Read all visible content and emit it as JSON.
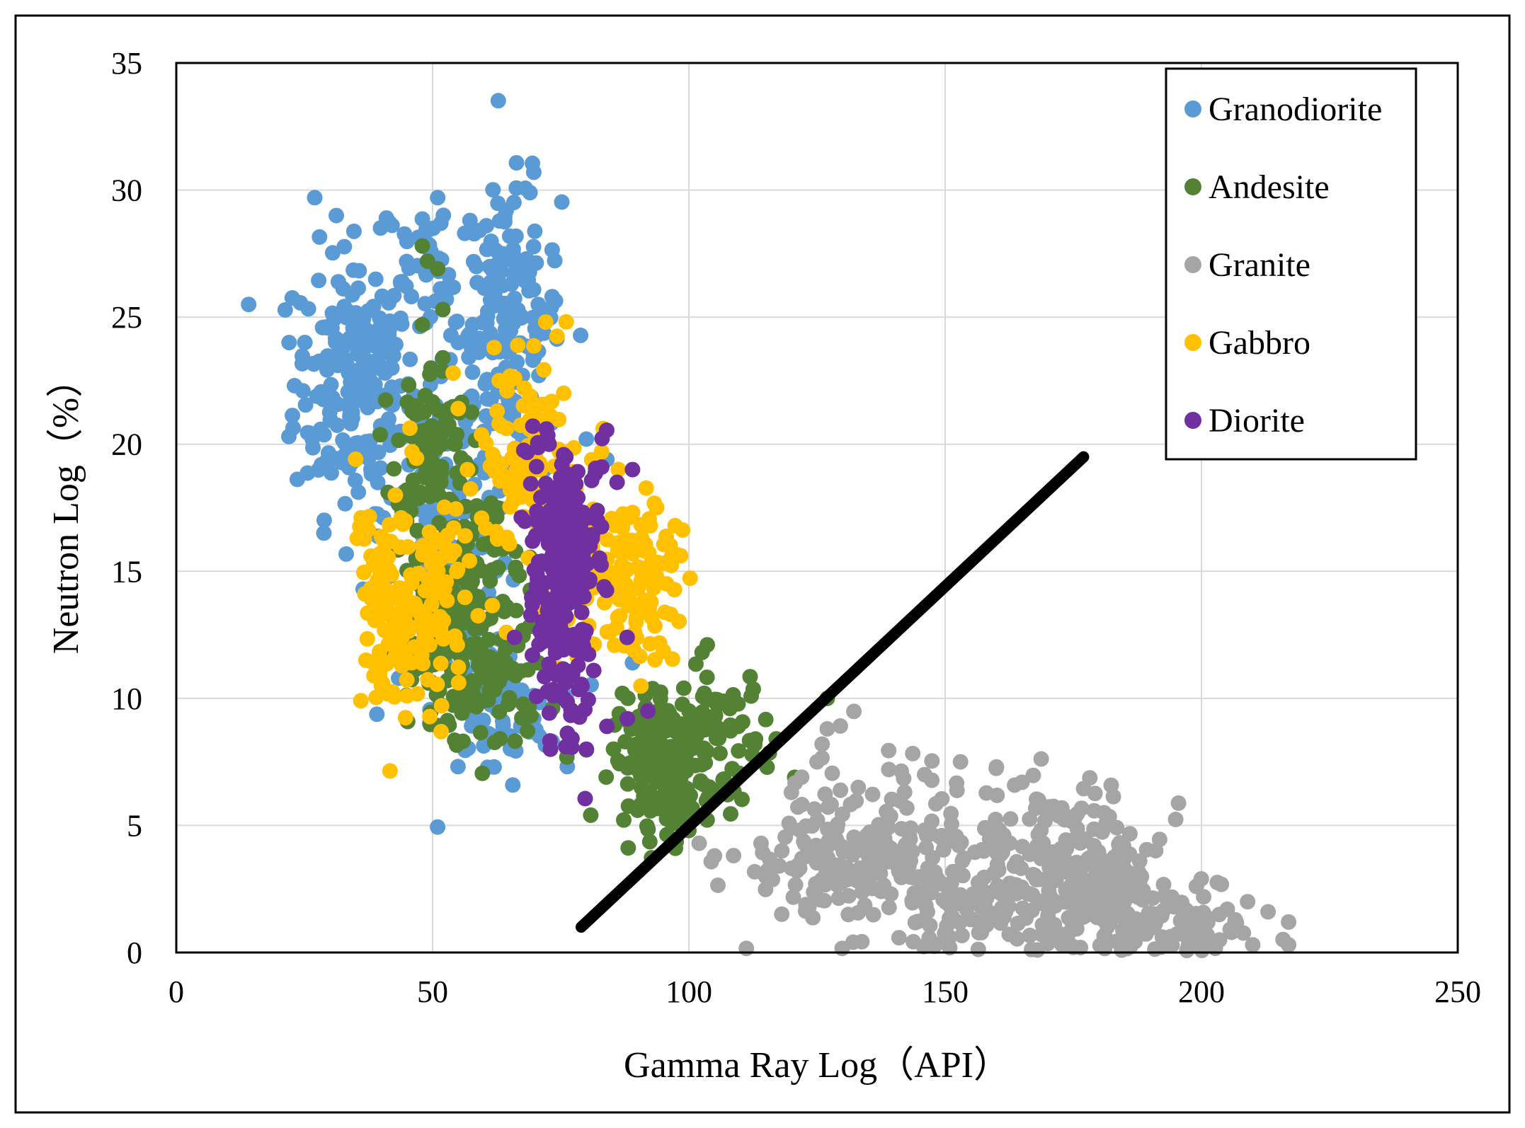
{
  "chart_data": {
    "type": "scatter",
    "xlabel": "Gamma Ray Log（API）",
    "ylabel": "Neutron Log（%）",
    "xlim": [
      0,
      250
    ],
    "ylim": [
      0,
      35
    ],
    "xticks": [
      "0",
      "50",
      "100",
      "150",
      "200",
      "250"
    ],
    "yticks": [
      "0",
      "5",
      "10",
      "15",
      "20",
      "25",
      "30",
      "35"
    ],
    "grid": true,
    "legend_position": "top-right",
    "colors": {
      "Granodiorite": "#5b9bd5",
      "Andesite": "#548235",
      "Granite": "#a5a5a5",
      "Gabbro": "#ffc000",
      "Diorite": "#7030a0",
      "boundary_line": "#000000"
    },
    "legend": [
      "Granodiorite",
      "Andesite",
      "Granite",
      "Gabbro",
      "Diorite"
    ],
    "boundary_line": {
      "x": [
        79,
        177
      ],
      "y": [
        1,
        19.5
      ]
    },
    "series": [
      {
        "name": "Granodiorite",
        "clusters": [
          {
            "cx": 35,
            "cy": 22.5,
            "sx": 6,
            "sy": 2.6,
            "n": 220
          },
          {
            "cx": 65,
            "cy": 25,
            "sx": 5,
            "sy": 2.6,
            "n": 160
          },
          {
            "cx": 55,
            "cy": 17,
            "sx": 7,
            "sy": 3,
            "n": 150
          },
          {
            "cx": 62,
            "cy": 9.5,
            "sx": 6,
            "sy": 1.3,
            "n": 70
          },
          {
            "cx": 50,
            "cy": 27,
            "sx": 5,
            "sy": 1.5,
            "n": 40
          }
        ],
        "points": [
          [
            27,
            29.7
          ],
          [
            41,
            28.9
          ],
          [
            51,
            29.7
          ],
          [
            69,
            29.9
          ],
          [
            22,
            24
          ],
          [
            62,
            7.3
          ],
          [
            91,
            6.6
          ],
          [
            89,
            11.4
          ],
          [
            35,
            19.4
          ],
          [
            80,
            20.2
          ],
          [
            84,
            19.4
          ]
        ]
      },
      {
        "name": "Andesite",
        "clusters": [
          {
            "cx": 50,
            "cy": 20,
            "sx": 3.5,
            "sy": 1.6,
            "n": 90
          },
          {
            "cx": 50,
            "cy": 12,
            "sx": 4,
            "sy": 2,
            "n": 90
          },
          {
            "cx": 62,
            "cy": 11.5,
            "sx": 5,
            "sy": 2,
            "n": 100
          },
          {
            "cx": 95,
            "cy": 7.5,
            "sx": 5,
            "sy": 1.2,
            "n": 160
          },
          {
            "cx": 105,
            "cy": 8.5,
            "sx": 6,
            "sy": 1.5,
            "n": 70
          },
          {
            "cx": 58,
            "cy": 15.5,
            "sx": 3,
            "sy": 1.5,
            "n": 50
          }
        ],
        "points": [
          [
            48,
            27.8
          ],
          [
            49,
            27.2
          ],
          [
            51,
            26.9
          ],
          [
            52,
            25.3
          ],
          [
            48,
            24.7
          ],
          [
            52,
            23.4
          ],
          [
            45,
            18.2
          ],
          [
            47,
            16.6
          ],
          [
            99,
            10.4
          ],
          [
            103,
            10.2
          ],
          [
            108,
            9.6
          ],
          [
            113,
            8.4
          ],
          [
            127,
            10.0
          ],
          [
            100,
            4.8
          ],
          [
            90,
            5.6
          ],
          [
            95,
            5.8
          ]
        ]
      },
      {
        "name": "Granite",
        "clusters": [
          {
            "cx": 130,
            "cy": 3.5,
            "sx": 10,
            "sy": 1.4,
            "n": 150
          },
          {
            "cx": 150,
            "cy": 4.5,
            "sx": 12,
            "sy": 2,
            "n": 120
          },
          {
            "cx": 178,
            "cy": 2.8,
            "sx": 7,
            "sy": 1.5,
            "n": 200
          },
          {
            "cx": 195,
            "cy": 1,
            "sx": 8,
            "sy": 0.7,
            "n": 90
          },
          {
            "cx": 160,
            "cy": 1.8,
            "sx": 10,
            "sy": 0.8,
            "n": 80
          }
        ],
        "points": [
          [
            127,
            8.8
          ],
          [
            126,
            8.2
          ],
          [
            125,
            7.5
          ],
          [
            122,
            6.9
          ],
          [
            120,
            6.3
          ],
          [
            139,
            7.2
          ],
          [
            146,
            7.0
          ],
          [
            153,
            7.5
          ],
          [
            160,
            7.3
          ],
          [
            165,
            6.7
          ],
          [
            170,
            5.5
          ],
          [
            181,
            5.5
          ],
          [
            199,
            2.6
          ],
          [
            209,
            2.0
          ],
          [
            213,
            1.6
          ],
          [
            217,
            1.2
          ],
          [
            217,
            0.3
          ],
          [
            210,
            0.3
          ],
          [
            168,
            0.1
          ],
          [
            175,
            0.2
          ],
          [
            102,
            4.3
          ],
          [
            105,
            3.8
          ],
          [
            115,
            3.0
          ]
        ]
      },
      {
        "name": "Gabbro",
        "clusters": [
          {
            "cx": 42,
            "cy": 13.5,
            "sx": 3.5,
            "sy": 2.4,
            "n": 120
          },
          {
            "cx": 52,
            "cy": 14,
            "sx": 3,
            "sy": 2,
            "n": 60
          },
          {
            "cx": 68,
            "cy": 19,
            "sx": 4,
            "sy": 2,
            "n": 110
          },
          {
            "cx": 90,
            "cy": 15,
            "sx": 5,
            "sy": 1.6,
            "n": 120
          },
          {
            "cx": 78,
            "cy": 16,
            "sx": 4,
            "sy": 2,
            "n": 60
          }
        ],
        "points": [
          [
            62,
            23.8
          ],
          [
            63,
            22.5
          ],
          [
            66,
            22.6
          ],
          [
            69,
            21.9
          ],
          [
            54,
            22.8
          ],
          [
            55,
            21.4
          ],
          [
            46,
            19.7
          ],
          [
            37,
            11.5
          ],
          [
            40,
            10.5
          ],
          [
            45,
            10.1
          ],
          [
            38,
            15.6
          ]
        ]
      },
      {
        "name": "Diorite",
        "clusters": [
          {
            "cx": 74,
            "cy": 15.5,
            "sx": 3,
            "sy": 2.2,
            "n": 150
          },
          {
            "cx": 77,
            "cy": 11,
            "sx": 2.5,
            "sy": 1.6,
            "n": 60
          },
          {
            "cx": 80,
            "cy": 16.5,
            "sx": 2.5,
            "sy": 1.8,
            "n": 40
          }
        ],
        "points": [
          [
            76,
            19.5
          ],
          [
            75,
            18.7
          ],
          [
            83,
            19.1
          ],
          [
            86,
            18.5
          ],
          [
            89,
            19.0
          ],
          [
            73,
            8.0
          ],
          [
            76,
            8.1
          ],
          [
            80,
            8.0
          ],
          [
            84,
            8.9
          ],
          [
            88,
            9.2
          ],
          [
            92,
            9.5
          ],
          [
            66,
            12.4
          ]
        ]
      }
    ]
  }
}
